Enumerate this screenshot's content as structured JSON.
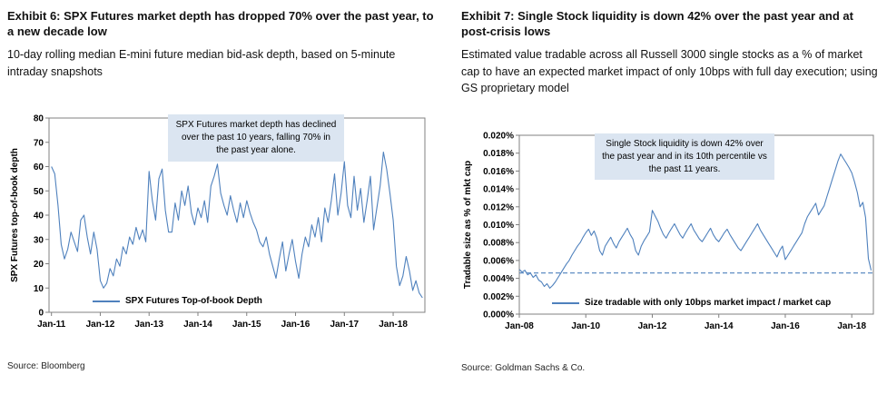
{
  "exhibits": [
    {
      "title": "Exhibit 6: SPX Futures market depth has dropped 70% over the past year, to a new decade low",
      "subtitle": "10-day rolling median E-mini future median bid-ask depth, based on 5-minute intraday snapshots",
      "source": "Source: Bloomberg"
    },
    {
      "title": "Exhibit 7: Single Stock liquidity is down 42% over the past year and at post-crisis lows",
      "subtitle": "Estimated value tradable across all Russell 3000 single stocks as a % of market cap to have an expected market impact of only 10bps with full day execution; using GS proprietary model",
      "source": "Source: Goldman Sachs & Co."
    }
  ],
  "chart_data": [
    {
      "type": "line",
      "title": "SPX Futures market depth",
      "xlabel": "",
      "ylabel": "SPX Futures top-of-book depth",
      "ylim": [
        0,
        80
      ],
      "y_ticks": [
        0,
        10,
        20,
        30,
        40,
        50,
        60,
        70,
        80
      ],
      "y_tick_labels": [
        "0",
        "10",
        "20",
        "30",
        "40",
        "50",
        "60",
        "70",
        "80"
      ],
      "x_range": [
        2010.95,
        2018.65
      ],
      "x_ticks": [
        2011,
        2012,
        2013,
        2014,
        2015,
        2016,
        2017,
        2018
      ],
      "x_tick_labels": [
        "Jan-11",
        "Jan-12",
        "Jan-13",
        "Jan-14",
        "Jan-15",
        "Jan-16",
        "Jan-17",
        "Jan-18"
      ],
      "line_color": "#4F81BD",
      "grid": false,
      "legend_position": "bottom-inside",
      "annotation": "SPX Futures market depth has declined over the past 10 years, falling 70% in the past year alone.",
      "series": [
        {
          "name": "SPX Futures Top-of-book Depth",
          "x_start": 2011.0,
          "x_end": 2018.6,
          "values": [
            60,
            57,
            44,
            28,
            22,
            26,
            33,
            29,
            25,
            38,
            40,
            31,
            24,
            33,
            26,
            13,
            10,
            12,
            18,
            15,
            22,
            19,
            27,
            24,
            31,
            28,
            35,
            30,
            34,
            29,
            58,
            46,
            38,
            55,
            59,
            42,
            33,
            33,
            45,
            38,
            50,
            44,
            52,
            41,
            36,
            43,
            39,
            46,
            37,
            52,
            56,
            61,
            49,
            44,
            40,
            48,
            42,
            37,
            45,
            39,
            46,
            41,
            37,
            34,
            29,
            27,
            31,
            24,
            19,
            14,
            22,
            29,
            17,
            24,
            30,
            21,
            14,
            24,
            31,
            27,
            36,
            31,
            39,
            29,
            43,
            37,
            46,
            57,
            40,
            49,
            62,
            44,
            39,
            56,
            42,
            51,
            37,
            46,
            56,
            34,
            43,
            52,
            66,
            59,
            49,
            38,
            19,
            11,
            15,
            23,
            17,
            9,
            13,
            8,
            6
          ]
        }
      ]
    },
    {
      "type": "line",
      "title": "Single Stock liquidity",
      "xlabel": "",
      "ylabel": "Tradable size as % of mkt cap",
      "ylim": [
        0,
        0.02
      ],
      "y_ticks": [
        0,
        0.002,
        0.004,
        0.006,
        0.008,
        0.01,
        0.012,
        0.014,
        0.016,
        0.018,
        0.02
      ],
      "y_tick_labels": [
        "0.000%",
        "0.002%",
        "0.004%",
        "0.006%",
        "0.008%",
        "0.010%",
        "0.012%",
        "0.014%",
        "0.016%",
        "0.018%",
        "0.020%"
      ],
      "x_range": [
        2008.0,
        2018.65
      ],
      "x_ticks": [
        2008,
        2010,
        2012,
        2014,
        2016,
        2018
      ],
      "x_tick_labels": [
        "Jan-08",
        "Jan-10",
        "Jan-12",
        "Jan-14",
        "Jan-16",
        "Jan-18"
      ],
      "line_color": "#4F81BD",
      "grid": false,
      "legend_position": "bottom-inside",
      "ref_line": 0.0046,
      "annotation": "Single Stock liquidity is down 42% over the past year and in its 10th percentile vs the past 11 years.",
      "series": [
        {
          "name": "Size tradable with only 10bps market impact / market cap",
          "x_start": 2008.0,
          "x_end": 2018.583,
          "values": [
            0.005,
            0.0047,
            0.0049,
            0.0044,
            0.0046,
            0.0041,
            0.0044,
            0.0038,
            0.0036,
            0.0031,
            0.0034,
            0.0029,
            0.0032,
            0.0036,
            0.0041,
            0.0046,
            0.0051,
            0.0056,
            0.006,
            0.0066,
            0.0071,
            0.0076,
            0.008,
            0.0086,
            0.0091,
            0.0095,
            0.0088,
            0.0093,
            0.0085,
            0.0071,
            0.0066,
            0.0076,
            0.0081,
            0.0086,
            0.0079,
            0.0074,
            0.0081,
            0.0086,
            0.0091,
            0.0096,
            0.0089,
            0.0084,
            0.0071,
            0.0066,
            0.0076,
            0.0082,
            0.0087,
            0.0092,
            0.0116,
            0.011,
            0.0104,
            0.0096,
            0.0089,
            0.0085,
            0.0091,
            0.0096,
            0.0101,
            0.0095,
            0.0089,
            0.0085,
            0.0091,
            0.0096,
            0.0101,
            0.0094,
            0.0089,
            0.0084,
            0.0081,
            0.0086,
            0.0091,
            0.0096,
            0.0089,
            0.0084,
            0.0081,
            0.0086,
            0.0091,
            0.0095,
            0.0089,
            0.0084,
            0.0079,
            0.0074,
            0.0071,
            0.0076,
            0.0081,
            0.0086,
            0.0091,
            0.0096,
            0.0101,
            0.0094,
            0.0089,
            0.0084,
            0.0079,
            0.0074,
            0.0069,
            0.0064,
            0.0071,
            0.0076,
            0.0061,
            0.0066,
            0.0071,
            0.0076,
            0.0081,
            0.0086,
            0.0091,
            0.0101,
            0.0109,
            0.0114,
            0.0119,
            0.0124,
            0.0111,
            0.0116,
            0.0121,
            0.0131,
            0.0141,
            0.0151,
            0.0161,
            0.0171,
            0.0179,
            0.0174,
            0.0169,
            0.0164,
            0.0158,
            0.0148,
            0.0136,
            0.012,
            0.0125,
            0.0108,
            0.0062,
            0.0049
          ]
        }
      ]
    }
  ]
}
